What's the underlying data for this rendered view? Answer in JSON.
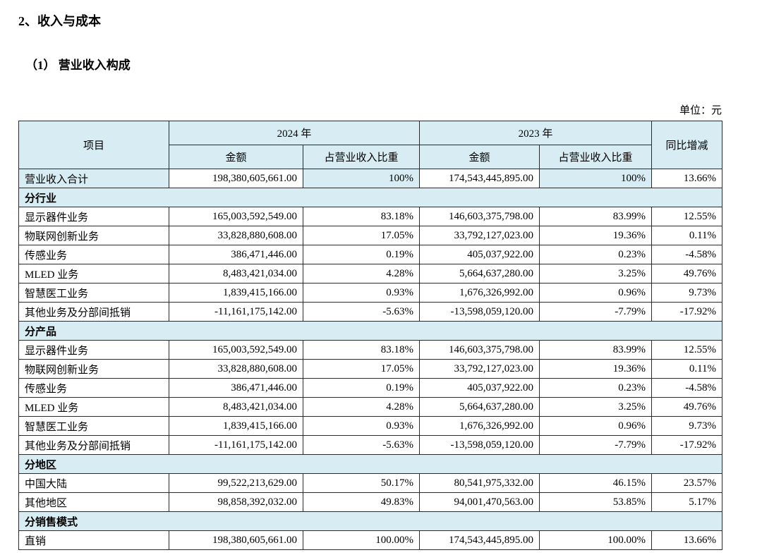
{
  "colors": {
    "highlight": "#d7edf3"
  },
  "page": {
    "section_title": "2、收入与成本",
    "subsection_title": "（1） 营业收入构成",
    "unit_label": "单位：元"
  },
  "table": {
    "header": {
      "item": "项目",
      "y2024": "2024 年",
      "y2023": "2023 年",
      "amount": "金额",
      "ratio": "占营业收入比重",
      "yoy": "同比增减"
    },
    "rows": [
      {
        "type": "total",
        "label": "营业收入合计",
        "a2024": "198,380,605,661.00",
        "p2024": "100%",
        "a2023": "174,543,445,895.00",
        "p2023": "100%",
        "yoy": "13.66%"
      },
      {
        "type": "section",
        "label": "分行业"
      },
      {
        "type": "data",
        "label": "显示器件业务",
        "a2024": "165,003,592,549.00",
        "p2024": "83.18%",
        "a2023": "146,603,375,798.00",
        "p2023": "83.99%",
        "yoy": "12.55%"
      },
      {
        "type": "data",
        "label": "物联网创新业务",
        "a2024": "33,828,880,608.00",
        "p2024": "17.05%",
        "a2023": "33,792,127,023.00",
        "p2023": "19.36%",
        "yoy": "0.11%"
      },
      {
        "type": "data",
        "label": "传感业务",
        "a2024": "386,471,446.00",
        "p2024": "0.19%",
        "a2023": "405,037,922.00",
        "p2023": "0.23%",
        "yoy": "-4.58%"
      },
      {
        "type": "data",
        "label": "MLED 业务",
        "a2024": "8,483,421,034.00",
        "p2024": "4.28%",
        "a2023": "5,664,637,280.00",
        "p2023": "3.25%",
        "yoy": "49.76%"
      },
      {
        "type": "data",
        "label": "智慧医工业务",
        "a2024": "1,839,415,166.00",
        "p2024": "0.93%",
        "a2023": "1,676,326,992.00",
        "p2023": "0.96%",
        "yoy": "9.73%"
      },
      {
        "type": "data",
        "label": "其他业务及分部间抵销",
        "a2024": "-11,161,175,142.00",
        "p2024": "-5.63%",
        "a2023": "-13,598,059,120.00",
        "p2023": "-7.79%",
        "yoy": "-17.92%"
      },
      {
        "type": "section",
        "label": "分产品"
      },
      {
        "type": "data",
        "label": "显示器件业务",
        "a2024": "165,003,592,549.00",
        "p2024": "83.18%",
        "a2023": "146,603,375,798.00",
        "p2023": "83.99%",
        "yoy": "12.55%"
      },
      {
        "type": "data",
        "label": "物联网创新业务",
        "a2024": "33,828,880,608.00",
        "p2024": "17.05%",
        "a2023": "33,792,127,023.00",
        "p2023": "19.36%",
        "yoy": "0.11%"
      },
      {
        "type": "data",
        "label": "传感业务",
        "a2024": "386,471,446.00",
        "p2024": "0.19%",
        "a2023": "405,037,922.00",
        "p2023": "0.23%",
        "yoy": "-4.58%"
      },
      {
        "type": "data",
        "label": "MLED 业务",
        "a2024": "8,483,421,034.00",
        "p2024": "4.28%",
        "a2023": "5,664,637,280.00",
        "p2023": "3.25%",
        "yoy": "49.76%"
      },
      {
        "type": "data",
        "label": "智慧医工业务",
        "a2024": "1,839,415,166.00",
        "p2024": "0.93%",
        "a2023": "1,676,326,992.00",
        "p2023": "0.96%",
        "yoy": "9.73%"
      },
      {
        "type": "data",
        "label": "其他业务及分部间抵销",
        "a2024": "-11,161,175,142.00",
        "p2024": "-5.63%",
        "a2023": "-13,598,059,120.00",
        "p2023": "-7.79%",
        "yoy": "-17.92%"
      },
      {
        "type": "section",
        "label": "分地区"
      },
      {
        "type": "data",
        "label": "中国大陆",
        "a2024": "99,522,213,629.00",
        "p2024": "50.17%",
        "a2023": "80,541,975,332.00",
        "p2023": "46.15%",
        "yoy": "23.57%"
      },
      {
        "type": "data",
        "label": "其他地区",
        "a2024": "98,858,392,032.00",
        "p2024": "49.83%",
        "a2023": "94,001,470,563.00",
        "p2023": "53.85%",
        "yoy": "5.17%"
      },
      {
        "type": "section",
        "label": "分销售模式"
      },
      {
        "type": "data",
        "label": "直销",
        "a2024": "198,380,605,661.00",
        "p2024": "100.00%",
        "a2023": "174,543,445,895.00",
        "p2023": "100.00%",
        "yoy": "13.66%"
      }
    ]
  }
}
